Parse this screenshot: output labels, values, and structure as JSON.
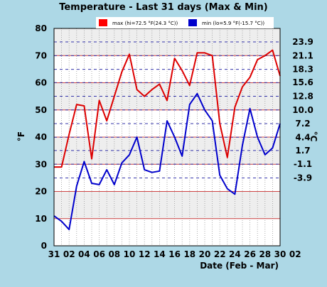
{
  "chart_data": {
    "type": "line",
    "title": "Temperature - Last 31 days (Max & Min)",
    "xlabel": "Date (Feb - Mar)",
    "ylabel": "°F",
    "ylabel_right": "°C",
    "ylim": [
      0,
      80
    ],
    "y_ticks": [
      0,
      10,
      20,
      30,
      40,
      50,
      60,
      70,
      80
    ],
    "y_right_ticks": [
      "-3.9",
      "-1.1",
      "1.7",
      "4.4",
      "7.2",
      "10.0",
      "12.8",
      "15.6",
      "18.3",
      "21.1",
      "23.9"
    ],
    "x": [
      1,
      2,
      3,
      4,
      5,
      6,
      7,
      8,
      9,
      10,
      11,
      12,
      13,
      14,
      15,
      16,
      17,
      18,
      19,
      20,
      21,
      22,
      23,
      24,
      25,
      26,
      27,
      28,
      29,
      30,
      31
    ],
    "x_tick_labels": [
      "31",
      "02",
      "04",
      "06",
      "08",
      "10",
      "12",
      "14",
      "16",
      "18",
      "20",
      "22",
      "24",
      "26",
      "28",
      "30",
      "02"
    ],
    "legend": {
      "position": "top",
      "entries": [
        {
          "label": "max (hi=72.5 °F(24.3 °C))",
          "color": "#ff0000"
        },
        {
          "label": "min (lo=5.9 °F(-15.7 °C))",
          "color": "#0000cc"
        }
      ]
    },
    "grid": true,
    "series": [
      {
        "name": "max",
        "color": "#dd0000",
        "values": [
          29,
          29,
          41,
          52,
          51.5,
          32,
          53.5,
          46,
          55,
          64,
          70.5,
          57.5,
          55,
          57.5,
          59.5,
          53.5,
          69,
          64.5,
          59,
          71,
          71,
          70,
          45,
          32.5,
          51,
          58.5,
          62,
          68.5,
          70,
          72,
          62.5
        ]
      },
      {
        "name": "min",
        "color": "#0000cc",
        "values": [
          11,
          9,
          6,
          22,
          31,
          23,
          22.5,
          28,
          22.5,
          30.5,
          33.5,
          40,
          28,
          27,
          27.5,
          46,
          40,
          33,
          52,
          56,
          50,
          46,
          26,
          21,
          19,
          37,
          50.5,
          40,
          33.5,
          36,
          45
        ]
      }
    ]
  }
}
